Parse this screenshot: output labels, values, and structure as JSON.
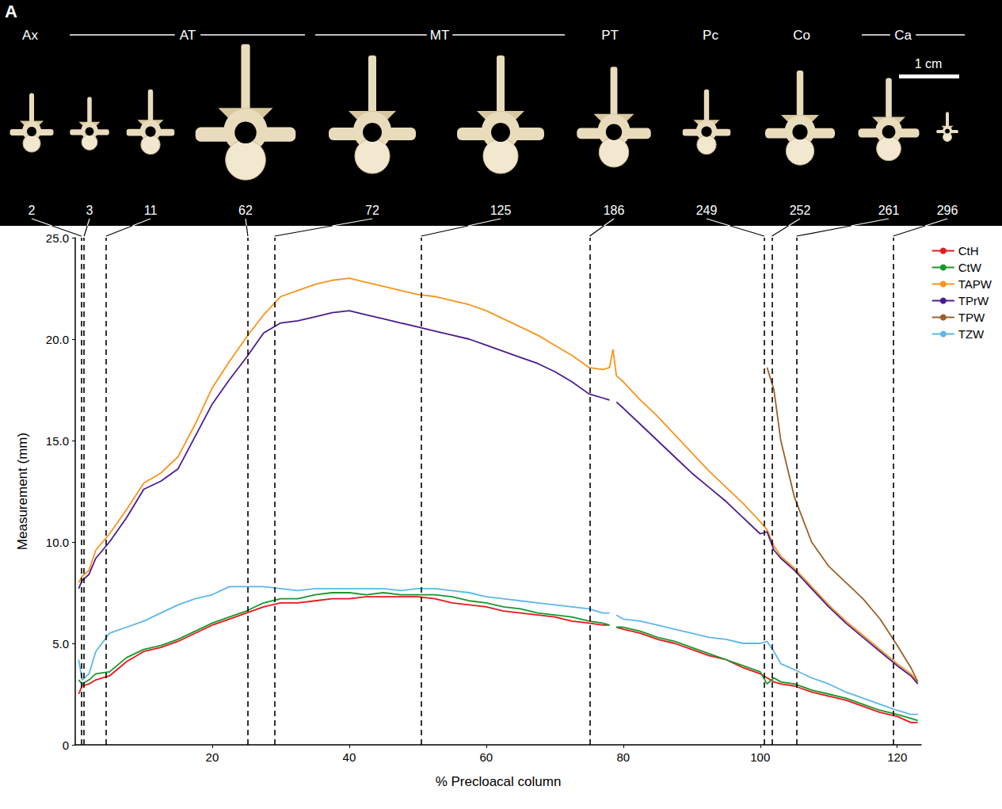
{
  "chart_data": {
    "type": "line",
    "panel_label": "A",
    "scale_bar": "1 cm",
    "x_label": "% Precloacal column",
    "y_label": "Measurement (mm)",
    "xlim": [
      0,
      123.5
    ],
    "ylim": [
      0,
      25
    ],
    "xticks": [
      20,
      40,
      60,
      80,
      100,
      120
    ],
    "yticks": [
      0,
      {
        "value": 5,
        "label": "5.0"
      },
      {
        "value": 10,
        "label": "10.0"
      },
      {
        "value": 15,
        "label": "15.0"
      },
      {
        "value": 20,
        "label": "20.0"
      },
      {
        "value": 25,
        "label": "25.0"
      }
    ],
    "grid": false,
    "legend": "upper right",
    "regions": [
      "Ax",
      "AT",
      "MT",
      "PT",
      "Pc",
      "Co",
      "Ca"
    ],
    "markers": [
      {
        "x": 0.9,
        "label": "2"
      },
      {
        "x": 1.3,
        "label": "3"
      },
      {
        "x": 4.5,
        "label": "11"
      },
      {
        "x": 25.2,
        "label": "62"
      },
      {
        "x": 29.1,
        "label": "72"
      },
      {
        "x": 50.5,
        "label": "125"
      },
      {
        "x": 75.1,
        "label": "186"
      },
      {
        "x": 100.6,
        "label": "249"
      },
      {
        "x": 101.7,
        "label": "252"
      },
      {
        "x": 105.3,
        "label": "261"
      },
      {
        "x": 119.4,
        "label": "296"
      }
    ],
    "x": [
      0.5,
      1,
      2,
      3,
      5,
      7.5,
      10,
      12.5,
      15,
      17.5,
      20,
      22.5,
      25,
      27.5,
      30,
      32.5,
      35,
      37.5,
      40,
      42.5,
      45,
      47.5,
      50,
      52.5,
      55,
      57.5,
      60,
      62.5,
      65,
      67.5,
      70,
      72.5,
      75,
      77,
      78,
      78.5,
      79,
      80,
      82.5,
      85,
      87.5,
      90,
      92.5,
      95,
      97.5,
      100,
      101,
      102,
      103,
      105,
      107.5,
      110,
      112.5,
      115,
      117.5,
      120,
      122,
      123
    ],
    "series": [
      {
        "name": "CtH",
        "color": "#e8161b",
        "values": [
          2.5,
          2.9,
          3.0,
          3.2,
          3.4,
          4.1,
          4.6,
          4.8,
          5.1,
          5.5,
          5.9,
          6.2,
          6.5,
          6.8,
          7.0,
          7.0,
          7.1,
          7.2,
          7.2,
          7.3,
          7.3,
          7.3,
          7.3,
          7.2,
          7.0,
          6.9,
          6.8,
          6.6,
          6.5,
          6.4,
          6.3,
          6.1,
          6.0,
          5.9,
          5.9,
          null,
          5.8,
          5.7,
          5.5,
          5.2,
          5.0,
          4.7,
          4.4,
          4.2,
          3.8,
          3.5,
          3.3,
          3.1,
          3.0,
          2.9,
          2.6,
          2.4,
          2.2,
          1.9,
          1.6,
          1.4,
          1.1,
          1.1
        ]
      },
      {
        "name": "CtW",
        "color": "#159a2a",
        "values": [
          3.2,
          3.0,
          3.2,
          3.5,
          3.6,
          4.3,
          4.7,
          4.9,
          5.2,
          5.6,
          6.0,
          6.3,
          6.6,
          7.0,
          7.2,
          7.2,
          7.4,
          7.5,
          7.5,
          7.4,
          7.5,
          7.4,
          7.4,
          7.4,
          7.3,
          7.1,
          7.0,
          6.8,
          6.7,
          6.5,
          6.4,
          6.3,
          6.1,
          6.0,
          5.9,
          null,
          5.8,
          5.8,
          5.6,
          5.3,
          5.1,
          4.8,
          4.5,
          4.2,
          3.9,
          3.6,
          3.0,
          3.3,
          3.1,
          3.0,
          2.7,
          2.5,
          2.3,
          2.0,
          1.7,
          1.5,
          1.3,
          1.2
        ]
      },
      {
        "name": "TAPW",
        "color": "#f7941d",
        "values": [
          8.0,
          8.3,
          8.6,
          9.6,
          10.4,
          11.6,
          12.9,
          13.4,
          14.2,
          15.8,
          17.6,
          18.9,
          20.1,
          21.2,
          22.1,
          22.4,
          22.7,
          22.9,
          23.0,
          22.8,
          22.6,
          22.4,
          22.2,
          22.1,
          21.9,
          21.7,
          21.4,
          21.0,
          20.6,
          20.2,
          19.7,
          19.2,
          18.6,
          18.5,
          18.6,
          19.5,
          18.2,
          17.9,
          17.0,
          16.2,
          15.3,
          14.4,
          13.5,
          12.7,
          11.9,
          11.0,
          10.6,
          9.8,
          9.3,
          8.7,
          7.8,
          6.9,
          6.1,
          5.4,
          4.7,
          4.0,
          3.5,
          3.1
        ]
      },
      {
        "name": "TPrW",
        "color": "#4b1c8f",
        "values": [
          7.7,
          8.1,
          8.4,
          9.2,
          10.0,
          11.2,
          12.6,
          13.0,
          13.6,
          15.2,
          16.8,
          18.0,
          19.1,
          20.3,
          20.8,
          20.9,
          21.1,
          21.3,
          21.4,
          21.2,
          21.0,
          20.8,
          20.6,
          20.4,
          20.2,
          20.0,
          19.7,
          19.4,
          19.1,
          18.8,
          18.4,
          17.9,
          17.3,
          17.1,
          17.0,
          null,
          16.9,
          16.6,
          15.8,
          15.0,
          14.2,
          13.4,
          12.7,
          12.0,
          11.2,
          10.4,
          10.5,
          9.6,
          9.2,
          8.6,
          7.7,
          6.8,
          6.0,
          5.3,
          4.6,
          3.9,
          3.4,
          3.0
        ]
      },
      {
        "name": "TPW",
        "color": "#9b6029",
        "values": [
          null,
          null,
          null,
          null,
          null,
          null,
          null,
          null,
          null,
          null,
          null,
          null,
          null,
          null,
          null,
          null,
          null,
          null,
          null,
          null,
          null,
          null,
          null,
          null,
          null,
          null,
          null,
          null,
          null,
          null,
          null,
          null,
          null,
          null,
          null,
          null,
          null,
          null,
          null,
          null,
          null,
          null,
          null,
          null,
          null,
          null,
          18.6,
          17.5,
          15.0,
          12.2,
          10.0,
          8.8,
          8.0,
          7.2,
          6.2,
          4.9,
          3.8,
          3.1
        ]
      },
      {
        "name": "TZW",
        "color": "#5db7e8",
        "values": [
          4.2,
          3.2,
          3.5,
          4.6,
          5.5,
          5.8,
          6.1,
          6.5,
          6.9,
          7.2,
          7.4,
          7.8,
          7.8,
          7.8,
          7.7,
          7.6,
          7.7,
          7.7,
          7.7,
          7.7,
          7.7,
          7.6,
          7.7,
          7.7,
          7.6,
          7.5,
          7.3,
          7.2,
          7.1,
          7.0,
          6.9,
          6.8,
          6.7,
          6.5,
          6.5,
          null,
          6.4,
          6.2,
          6.1,
          5.9,
          5.7,
          5.5,
          5.3,
          5.2,
          5.0,
          5.0,
          5.1,
          4.6,
          4.0,
          3.7,
          3.3,
          3.0,
          2.6,
          2.3,
          2.0,
          1.7,
          1.5,
          1.5
        ]
      }
    ]
  }
}
